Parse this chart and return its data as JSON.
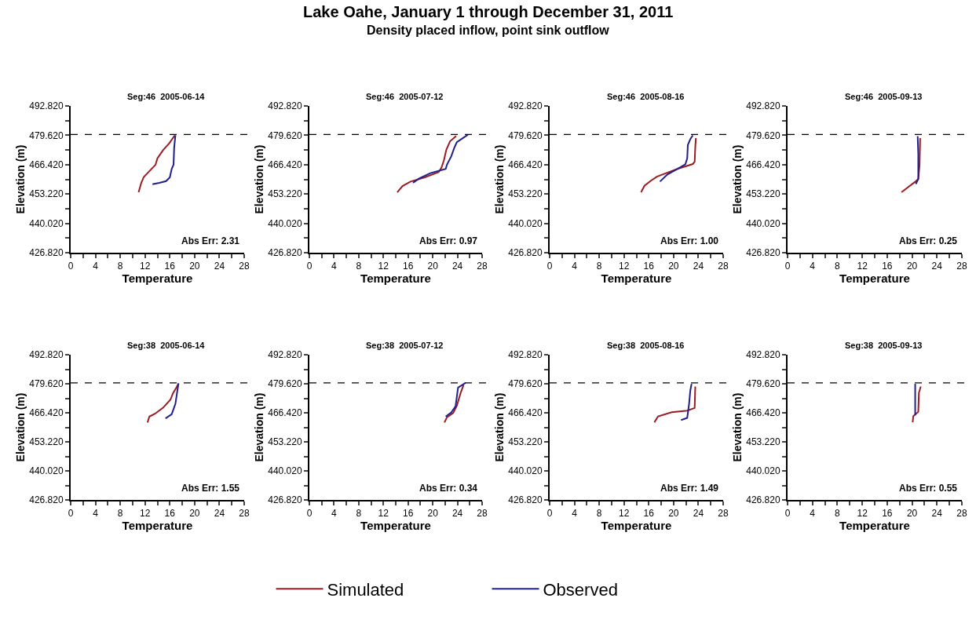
{
  "chart_data": [
    {
      "type": "other",
      "title": "Lake Oahe, January 1 through December 31, 2011",
      "subtitle": "Density placed inflow, point sink outflow"
    },
    {
      "type": "line",
      "title": "Seg:46  2005-06-14",
      "xlabel": "Temperature",
      "ylabel": "Elevation (m)",
      "xlim": [
        0,
        28
      ],
      "ylim": [
        426.82,
        492.82
      ],
      "xticks": [
        0,
        {
          "value": 2,
          "label": null
        },
        4,
        {
          "value": 6,
          "label": null
        },
        8,
        {
          "value": 10,
          "label": null
        },
        12,
        {
          "value": 14,
          "label": null
        },
        16,
        {
          "value": 18,
          "label": null
        },
        20,
        {
          "value": 22,
          "label": null
        },
        24,
        {
          "value": 26,
          "label": null
        },
        28
      ],
      "yticks": [
        {
          "value": 426.82,
          "label": "426.820"
        },
        {
          "value": 433.42,
          "label": null
        },
        {
          "value": 440.02,
          "label": "440.020"
        },
        {
          "value": 446.62,
          "label": null
        },
        {
          "value": 453.22,
          "label": "453.220"
        },
        {
          "value": 459.82,
          "label": null
        },
        {
          "value": 466.42,
          "label": "466.420"
        },
        {
          "value": 473.02,
          "label": null
        },
        {
          "value": 479.62,
          "label": "479.620"
        },
        {
          "value": 486.22,
          "label": null
        },
        {
          "value": 492.82,
          "label": "492.820"
        }
      ],
      "legend": "bottom",
      "line_style": "solid",
      "marker": "none",
      "ref_lines": [
        {
          "axis": "y",
          "value": 480.0,
          "line_style": "dashed",
          "color": "#000000"
        }
      ],
      "annotations": [
        "Abs Err: 2.31"
      ],
      "series": [
        {
          "name": "Simulated",
          "color": "#9b1b22",
          "x": [
            10.96,
            11.4,
            11.8,
            12.7,
            13.7,
            14.0,
            14.95,
            15.9,
            16.8
          ],
          "values": [
            454.0,
            458.3,
            460.9,
            463.5,
            466.4,
            469.3,
            473.1,
            476.0,
            479.6
          ]
        },
        {
          "name": "Observed",
          "color": "#1f1f8f",
          "x": [
            13.2,
            14.3,
            15.4,
            16.0,
            16.3,
            16.6,
            16.7,
            16.9
          ],
          "values": [
            457.6,
            458.2,
            459.0,
            460.7,
            464.5,
            466.4,
            474.1,
            479.6
          ]
        }
      ]
    },
    {
      "type": "line",
      "title": "Seg:46  2005-07-12",
      "xlabel": "Temperature",
      "ylabel": "Elevation (m)",
      "xlim": [
        0,
        28
      ],
      "ylim": [
        426.82,
        492.82
      ],
      "xticks": [
        0,
        {
          "value": 2,
          "label": null
        },
        4,
        {
          "value": 6,
          "label": null
        },
        8,
        {
          "value": 10,
          "label": null
        },
        12,
        {
          "value": 14,
          "label": null
        },
        16,
        {
          "value": 18,
          "label": null
        },
        20,
        {
          "value": 22,
          "label": null
        },
        24,
        {
          "value": 26,
          "label": null
        },
        28
      ],
      "yticks": [
        {
          "value": 426.82,
          "label": "426.820"
        },
        {
          "value": 433.42,
          "label": null
        },
        {
          "value": 440.02,
          "label": "440.020"
        },
        {
          "value": 446.62,
          "label": null
        },
        {
          "value": 453.22,
          "label": "453.220"
        },
        {
          "value": 459.82,
          "label": null
        },
        {
          "value": 466.42,
          "label": "466.420"
        },
        {
          "value": 473.02,
          "label": null
        },
        {
          "value": 479.62,
          "label": "479.620"
        },
        {
          "value": 486.22,
          "label": null
        },
        {
          "value": 492.82,
          "label": "492.820"
        }
      ],
      "line_style": "solid",
      "marker": "none",
      "ref_lines": [
        {
          "axis": "y",
          "value": 480.0,
          "line_style": "dashed",
          "color": "#000000"
        }
      ],
      "annotations": [
        "Abs Err: 0.97"
      ],
      "series": [
        {
          "color": "#9b1b22",
          "x": [
            14.25,
            15.1,
            16.4,
            18.7,
            20.96,
            21.4,
            21.8,
            22.2,
            22.8,
            23.8
          ],
          "values": [
            454.0,
            456.8,
            458.8,
            460.7,
            463.1,
            465.0,
            468.3,
            473.1,
            476.9,
            479.3
          ]
        },
        {
          "color": "#1f1f8f",
          "x": [
            16.8,
            17.8,
            19.6,
            22.1,
            22.3,
            23.0,
            23.5,
            23.9,
            25.7
          ],
          "values": [
            458.3,
            460.2,
            462.6,
            464.5,
            466.4,
            470.2,
            474.1,
            476.5,
            479.9
          ]
        }
      ]
    },
    {
      "type": "line",
      "title": "Seg:46  2005-08-16",
      "xlabel": "Temperature",
      "ylabel": "Elevation (m)",
      "xlim": [
        0,
        28
      ],
      "ylim": [
        426.82,
        492.82
      ],
      "xticks": [
        0,
        {
          "value": 2,
          "label": null
        },
        4,
        {
          "value": 6,
          "label": null
        },
        8,
        {
          "value": 10,
          "label": null
        },
        12,
        {
          "value": 14,
          "label": null
        },
        16,
        {
          "value": 18,
          "label": null
        },
        20,
        {
          "value": 22,
          "label": null
        },
        24,
        {
          "value": 26,
          "label": null
        },
        28
      ],
      "yticks": [
        {
          "value": 426.82,
          "label": "426.820"
        },
        {
          "value": 433.42,
          "label": null
        },
        {
          "value": 440.02,
          "label": "440.020"
        },
        {
          "value": 446.62,
          "label": null
        },
        {
          "value": 453.22,
          "label": "453.220"
        },
        {
          "value": 459.82,
          "label": null
        },
        {
          "value": 466.42,
          "label": "466.420"
        },
        {
          "value": 473.02,
          "label": null
        },
        {
          "value": 479.62,
          "label": "479.620"
        },
        {
          "value": 486.22,
          "label": null
        },
        {
          "value": 492.82,
          "label": "492.820"
        }
      ],
      "line_style": "solid",
      "marker": "none",
      "ref_lines": [
        {
          "axis": "y",
          "value": 480.0,
          "line_style": "dashed",
          "color": "#000000"
        }
      ],
      "annotations": [
        "Abs Err: 1.00"
      ],
      "series": [
        {
          "color": "#9b1b22",
          "x": [
            14.75,
            15.3,
            16.3,
            17.3,
            18.7,
            20.7,
            23.1,
            23.4,
            23.5,
            23.6
          ],
          "values": [
            454.0,
            456.9,
            459.1,
            461.0,
            462.5,
            464.6,
            466.7,
            467.7,
            474.3,
            478.4
          ]
        },
        {
          "color": "#1f1f8f",
          "x": [
            17.8,
            19.0,
            20.7,
            21.9,
            22.2,
            22.3,
            22.7,
            23.1
          ],
          "values": [
            458.8,
            462.0,
            464.6,
            466.6,
            469.2,
            475.3,
            477.9,
            479.6
          ]
        }
      ]
    },
    {
      "type": "line",
      "title": "Seg:46  2005-09-13",
      "xlabel": "Temperature",
      "ylabel": "Elevation (m)",
      "xlim": [
        0,
        28
      ],
      "ylim": [
        426.82,
        492.82
      ],
      "xticks": [
        0,
        {
          "value": 2,
          "label": null
        },
        4,
        {
          "value": 6,
          "label": null
        },
        8,
        {
          "value": 10,
          "label": null
        },
        12,
        {
          "value": 14,
          "label": null
        },
        16,
        {
          "value": 18,
          "label": null
        },
        20,
        {
          "value": 22,
          "label": null
        },
        24,
        {
          "value": 26,
          "label": null
        },
        28
      ],
      "yticks": [
        {
          "value": 426.82,
          "label": "426.820"
        },
        {
          "value": 433.42,
          "label": null
        },
        {
          "value": 440.02,
          "label": "440.020"
        },
        {
          "value": 446.62,
          "label": null
        },
        {
          "value": 453.22,
          "label": "453.220"
        },
        {
          "value": 459.82,
          "label": null
        },
        {
          "value": 466.42,
          "label": "466.420"
        },
        {
          "value": 473.02,
          "label": null
        },
        {
          "value": 479.62,
          "label": "479.620"
        },
        {
          "value": 486.22,
          "label": null
        },
        {
          "value": 492.82,
          "label": "492.820"
        }
      ],
      "line_style": "solid",
      "marker": "none",
      "ref_lines": [
        {
          "axis": "y",
          "value": 480.0,
          "line_style": "dashed",
          "color": "#000000"
        }
      ],
      "annotations": [
        "Abs Err: 0.25"
      ],
      "series": [
        {
          "color": "#9b1b22",
          "x": [
            18.3,
            19.4,
            20.5,
            21.0,
            21.2,
            21.3
          ],
          "values": [
            454.0,
            456.4,
            458.7,
            460.0,
            466.1,
            478.4
          ]
        },
        {
          "color": "#1f1f8f",
          "x": [
            20.6,
            21.0,
            21.0,
            20.9
          ],
          "values": [
            457.7,
            460.0,
            471.2,
            479.2
          ]
        }
      ]
    },
    {
      "type": "line",
      "title": "Seg:38  2005-06-14",
      "xlabel": "Temperature",
      "ylabel": "Elevation (m)",
      "xlim": [
        0,
        28
      ],
      "ylim": [
        426.82,
        492.82
      ],
      "xticks": [
        0,
        {
          "value": 2,
          "label": null
        },
        4,
        {
          "value": 6,
          "label": null
        },
        8,
        {
          "value": 10,
          "label": null
        },
        12,
        {
          "value": 14,
          "label": null
        },
        16,
        {
          "value": 18,
          "label": null
        },
        20,
        {
          "value": 22,
          "label": null
        },
        24,
        {
          "value": 26,
          "label": null
        },
        28
      ],
      "yticks": [
        {
          "value": 426.82,
          "label": "426.820"
        },
        {
          "value": 433.42,
          "label": null
        },
        {
          "value": 440.02,
          "label": "440.020"
        },
        {
          "value": 446.62,
          "label": null
        },
        {
          "value": 453.22,
          "label": "453.220"
        },
        {
          "value": 459.82,
          "label": null
        },
        {
          "value": 466.42,
          "label": "466.420"
        },
        {
          "value": 473.02,
          "label": null
        },
        {
          "value": 479.62,
          "label": "479.620"
        },
        {
          "value": 486.22,
          "label": null
        },
        {
          "value": 492.82,
          "label": "492.820"
        }
      ],
      "line_style": "solid",
      "marker": "none",
      "ref_lines": [
        {
          "axis": "y",
          "value": 480.0,
          "line_style": "dashed",
          "color": "#000000"
        }
      ],
      "annotations": [
        "Abs Err: 1.55"
      ],
      "series": [
        {
          "color": "#9b1b22",
          "x": [
            12.4,
            12.7,
            13.6,
            14.9,
            16.1,
            16.5,
            17.1,
            17.4
          ],
          "values": [
            462.0,
            464.7,
            466.0,
            468.7,
            472.4,
            475.3,
            478.1,
            479.8
          ]
        },
        {
          "color": "#1f1f8f",
          "x": [
            15.3,
            16.3,
            16.9,
            17.2,
            17.4
          ],
          "values": [
            463.9,
            465.8,
            470.5,
            476.2,
            479.8
          ]
        }
      ]
    },
    {
      "type": "line",
      "title": "Seg:38  2005-07-12",
      "xlabel": "Temperature",
      "ylabel": "Elevation (m)",
      "xlim": [
        0,
        28
      ],
      "ylim": [
        426.82,
        492.82
      ],
      "xticks": [
        0,
        {
          "value": 2,
          "label": null
        },
        4,
        {
          "value": 6,
          "label": null
        },
        8,
        {
          "value": 10,
          "label": null
        },
        12,
        {
          "value": 14,
          "label": null
        },
        16,
        {
          "value": 18,
          "label": null
        },
        20,
        {
          "value": 22,
          "label": null
        },
        24,
        {
          "value": 26,
          "label": null
        },
        28
      ],
      "yticks": [
        {
          "value": 426.82,
          "label": "426.820"
        },
        {
          "value": 433.42,
          "label": null
        },
        {
          "value": 440.02,
          "label": "440.020"
        },
        {
          "value": 446.62,
          "label": null
        },
        {
          "value": 453.22,
          "label": "453.220"
        },
        {
          "value": 459.82,
          "label": null
        },
        {
          "value": 466.42,
          "label": "466.420"
        },
        {
          "value": 473.02,
          "label": null
        },
        {
          "value": 479.62,
          "label": "479.620"
        },
        {
          "value": 486.22,
          "label": null
        },
        {
          "value": 492.82,
          "label": "492.820"
        }
      ],
      "line_style": "solid",
      "marker": "none",
      "ref_lines": [
        {
          "axis": "y",
          "value": 480.0,
          "line_style": "dashed",
          "color": "#000000"
        }
      ],
      "annotations": [
        "Abs Err: 0.34"
      ],
      "series": [
        {
          "color": "#9b1b22",
          "x": [
            21.9,
            22.3,
            23.3,
            23.9,
            24.5,
            25.0
          ],
          "values": [
            462.0,
            464.4,
            466.3,
            469.6,
            475.3,
            479.1
          ]
        },
        {
          "color": "#1f1f8f",
          "x": [
            22.1,
            23.0,
            23.7,
            24.1,
            25.3
          ],
          "values": [
            464.7,
            466.6,
            469.4,
            477.9,
            480.0
          ]
        }
      ]
    },
    {
      "type": "line",
      "title": "Seg:38  2005-08-16",
      "xlabel": "Temperature",
      "ylabel": "Elevation (m)",
      "xlim": [
        0,
        28
      ],
      "ylim": [
        426.82,
        492.82
      ],
      "xticks": [
        0,
        {
          "value": 2,
          "label": null
        },
        4,
        {
          "value": 6,
          "label": null
        },
        8,
        {
          "value": 10,
          "label": null
        },
        12,
        {
          "value": 14,
          "label": null
        },
        16,
        {
          "value": 18,
          "label": null
        },
        20,
        {
          "value": 22,
          "label": null
        },
        24,
        {
          "value": 26,
          "label": null
        },
        28
      ],
      "yticks": [
        {
          "value": 426.82,
          "label": "426.820"
        },
        {
          "value": 433.42,
          "label": null
        },
        {
          "value": 440.02,
          "label": "440.020"
        },
        {
          "value": 446.62,
          "label": null
        },
        {
          "value": 453.22,
          "label": "453.220"
        },
        {
          "value": 459.82,
          "label": null
        },
        {
          "value": 466.42,
          "label": "466.420"
        },
        {
          "value": 473.02,
          "label": null
        },
        {
          "value": 479.62,
          "label": "479.620"
        },
        {
          "value": 486.22,
          "label": null
        },
        {
          "value": 492.82,
          "label": "492.820"
        }
      ],
      "line_style": "solid",
      "marker": "none",
      "ref_lines": [
        {
          "axis": "y",
          "value": 480.0,
          "line_style": "dashed",
          "color": "#000000"
        }
      ],
      "annotations": [
        "Abs Err: 1.49"
      ],
      "series": [
        {
          "color": "#9b1b22",
          "x": [
            16.9,
            17.5,
            19.7,
            22.2,
            23.4,
            23.5
          ],
          "values": [
            462.1,
            464.8,
            466.7,
            467.4,
            468.6,
            478.4
          ]
        },
        {
          "color": "#1f1f8f",
          "x": [
            21.2,
            22.2,
            22.5,
            22.7,
            22.9
          ],
          "values": [
            463.1,
            464.1,
            470.4,
            476.6,
            479.6
          ]
        }
      ]
    },
    {
      "type": "line",
      "title": "Seg:38  2005-09-13",
      "xlabel": "Temperature",
      "ylabel": "Elevation (m)",
      "xlim": [
        0,
        28
      ],
      "ylim": [
        426.82,
        492.82
      ],
      "xticks": [
        0,
        {
          "value": 2,
          "label": null
        },
        4,
        {
          "value": 6,
          "label": null
        },
        8,
        {
          "value": 10,
          "label": null
        },
        12,
        {
          "value": 14,
          "label": null
        },
        16,
        {
          "value": 18,
          "label": null
        },
        20,
        {
          "value": 22,
          "label": null
        },
        24,
        {
          "value": 26,
          "label": null
        },
        28
      ],
      "yticks": [
        {
          "value": 426.82,
          "label": "426.820"
        },
        {
          "value": 433.42,
          "label": null
        },
        {
          "value": 440.02,
          "label": "440.020"
        },
        {
          "value": 446.62,
          "label": null
        },
        {
          "value": 453.22,
          "label": "453.220"
        },
        {
          "value": 459.82,
          "label": null
        },
        {
          "value": 466.42,
          "label": "466.420"
        },
        {
          "value": 473.02,
          "label": null
        },
        {
          "value": 479.62,
          "label": "479.620"
        },
        {
          "value": 486.22,
          "label": null
        },
        {
          "value": 492.82,
          "label": "492.820"
        }
      ],
      "line_style": "solid",
      "marker": "none",
      "ref_lines": [
        {
          "axis": "y",
          "value": 480.0,
          "line_style": "dashed",
          "color": "#000000"
        }
      ],
      "annotations": [
        "Abs Err: 0.55"
      ],
      "series": [
        {
          "color": "#9b1b22",
          "x": [
            20.1,
            20.2,
            21.0,
            21.1,
            21.4
          ],
          "values": [
            462.1,
            464.9,
            466.9,
            475.5,
            478.4
          ]
        },
        {
          "color": "#1f1f8f",
          "x": [
            20.5,
            20.5
          ],
          "values": [
            465.3,
            479.6
          ]
        }
      ]
    }
  ]
}
